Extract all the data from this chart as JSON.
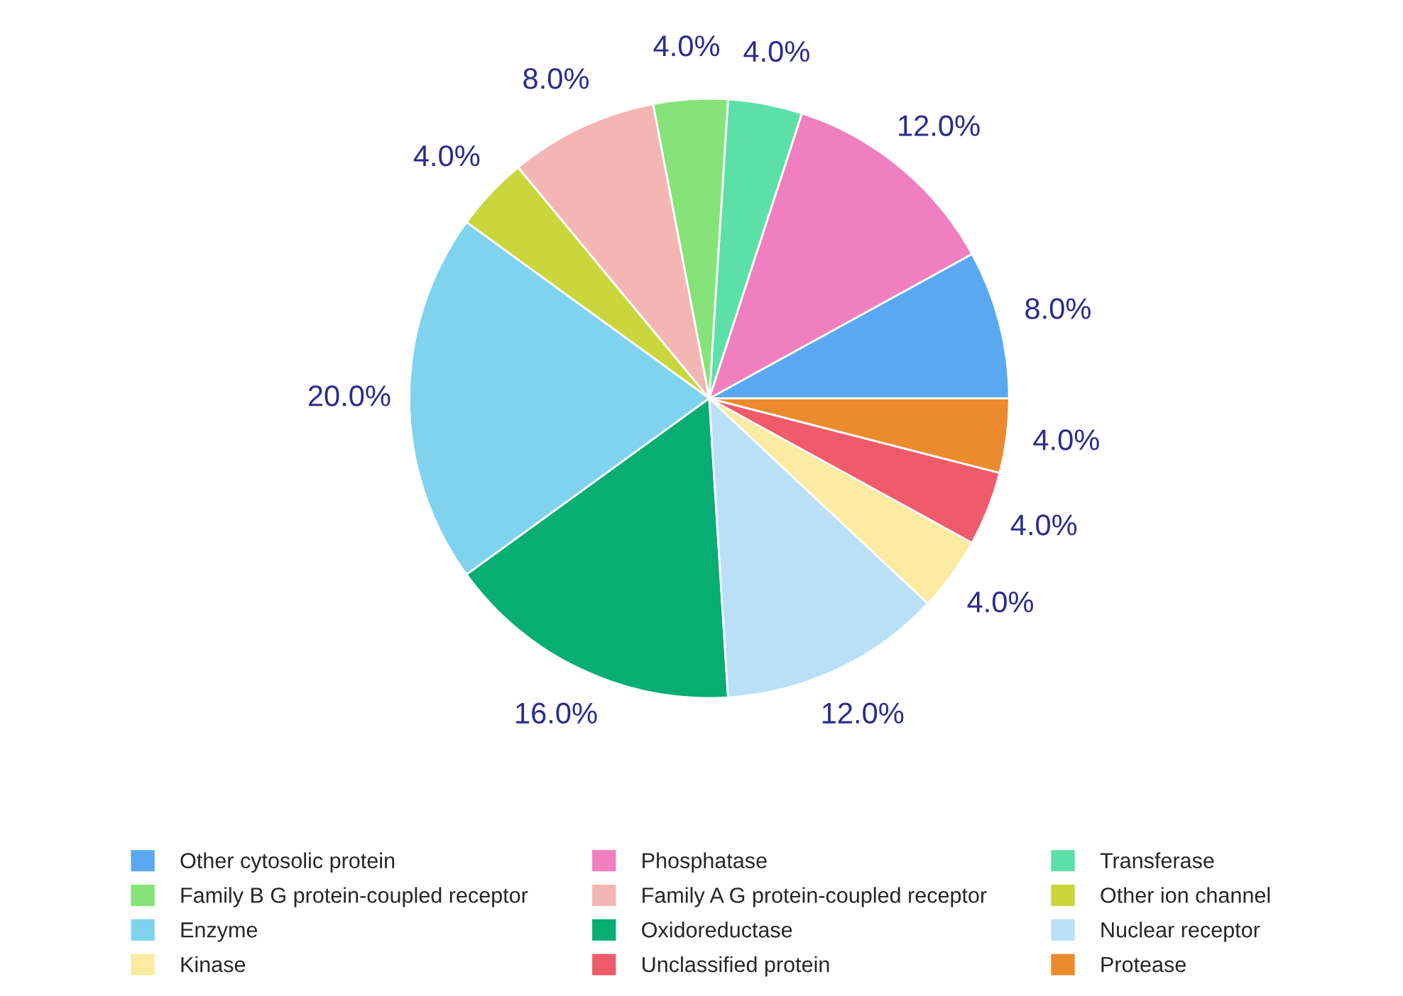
{
  "chart_data": {
    "type": "pie",
    "categories": [
      "Other cytosolic protein",
      "Phosphatase",
      "Transferase",
      "Family B G protein-coupled receptor",
      "Family A G protein-coupled receptor",
      "Other ion channel",
      "Enzyme",
      "Oxidoreductase",
      "Nuclear receptor",
      "Kinase",
      "Unclassified protein",
      "Protease"
    ],
    "values": [
      8,
      12,
      4,
      4,
      8,
      4,
      20,
      16,
      12,
      4,
      4,
      4
    ],
    "value_labels": [
      "8.0%",
      "12.0%",
      "4.0%",
      "4.0%",
      "8.0%",
      "4.0%",
      "20.0%",
      "16.0%",
      "12.0%",
      "4.0%",
      "4.0%",
      "4.0%"
    ],
    "colors": [
      "#5aa9f0",
      "#f07fbf",
      "#5de0a8",
      "#86e37a",
      "#f4b6b4",
      "#c9d63c",
      "#80d3ef",
      "#08ad74",
      "#b9e0f6",
      "#fbeba2",
      "#ef5b6a",
      "#ec8a2e"
    ],
    "legend": "bottom"
  }
}
